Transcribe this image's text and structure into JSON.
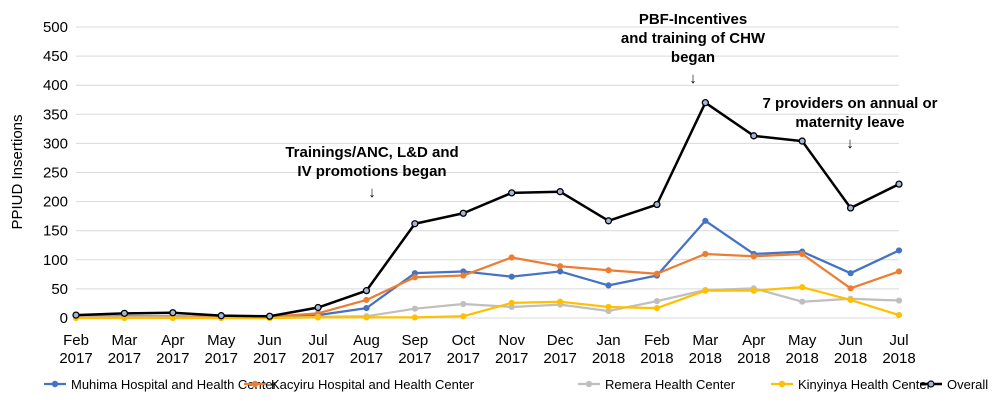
{
  "chart_data": {
    "type": "line",
    "ylabel": "PPIUD Insertions",
    "xlabel": "",
    "ylim": [
      0,
      500
    ],
    "yticks": [
      0,
      50,
      100,
      150,
      200,
      250,
      300,
      350,
      400,
      450,
      500
    ],
    "grid": "horizontal",
    "legend_position": "bottom",
    "categories": [
      [
        "Feb",
        "2017"
      ],
      [
        "Mar",
        "2017"
      ],
      [
        "Apr",
        "2017"
      ],
      [
        "May",
        "2017"
      ],
      [
        "Jun",
        "2017"
      ],
      [
        "Jul",
        "2017"
      ],
      [
        "Aug",
        "2017"
      ],
      [
        "Sep",
        "2017"
      ],
      [
        "Oct",
        "2017"
      ],
      [
        "Nov",
        "2017"
      ],
      [
        "Dec",
        "2017"
      ],
      [
        "Jan",
        "2018"
      ],
      [
        "Feb",
        "2018"
      ],
      [
        "Mar",
        "2018"
      ],
      [
        "Apr",
        "2018"
      ],
      [
        "May",
        "2018"
      ],
      [
        "Jun",
        "2018"
      ],
      [
        "Jul",
        "2018"
      ]
    ],
    "series": [
      {
        "name": "Muhima Hospital and Health Center",
        "color": "#4472c4",
        "values": [
          2,
          3,
          2,
          1,
          1,
          5,
          17,
          77,
          80,
          71,
          80,
          56,
          73,
          167,
          110,
          114,
          77,
          116
        ]
      },
      {
        "name": "Kacyiru Hospital and Health Center",
        "color": "#ed7d31",
        "values": [
          2,
          3,
          3,
          2,
          2,
          8,
          31,
          70,
          73,
          104,
          89,
          82,
          76,
          110,
          106,
          110,
          51,
          80
        ]
      },
      {
        "name": "Remera Health Center",
        "color": "#bfbfbf",
        "values": [
          1,
          1,
          1,
          0,
          0,
          2,
          3,
          16,
          24,
          19,
          23,
          12,
          29,
          48,
          51,
          28,
          33,
          30
        ]
      },
      {
        "name": "Kinyinya Health Center",
        "color": "#ffc000",
        "values": [
          0,
          0,
          0,
          0,
          0,
          1,
          1,
          1,
          3,
          26,
          28,
          19,
          17,
          47,
          47,
          53,
          31,
          5
        ]
      },
      {
        "name": "Overall",
        "color": "#000000",
        "values": [
          5,
          8,
          9,
          4,
          3,
          18,
          47,
          162,
          180,
          215,
          217,
          167,
          195,
          370,
          313,
          304,
          189,
          230
        ]
      }
    ],
    "annotations": [
      {
        "lines": [
          "Trainings/ANC, L&D and",
          "IV promotions began"
        ],
        "arrow": "↓",
        "category_index": 6
      },
      {
        "lines": [
          "PBF-Incentives",
          "and training of CHW",
          "began"
        ],
        "arrow": "↓",
        "category_index": 13
      },
      {
        "lines": [
          "7 providers on annual or",
          "maternity leave"
        ],
        "arrow": "↓",
        "category_index": 16
      }
    ]
  }
}
